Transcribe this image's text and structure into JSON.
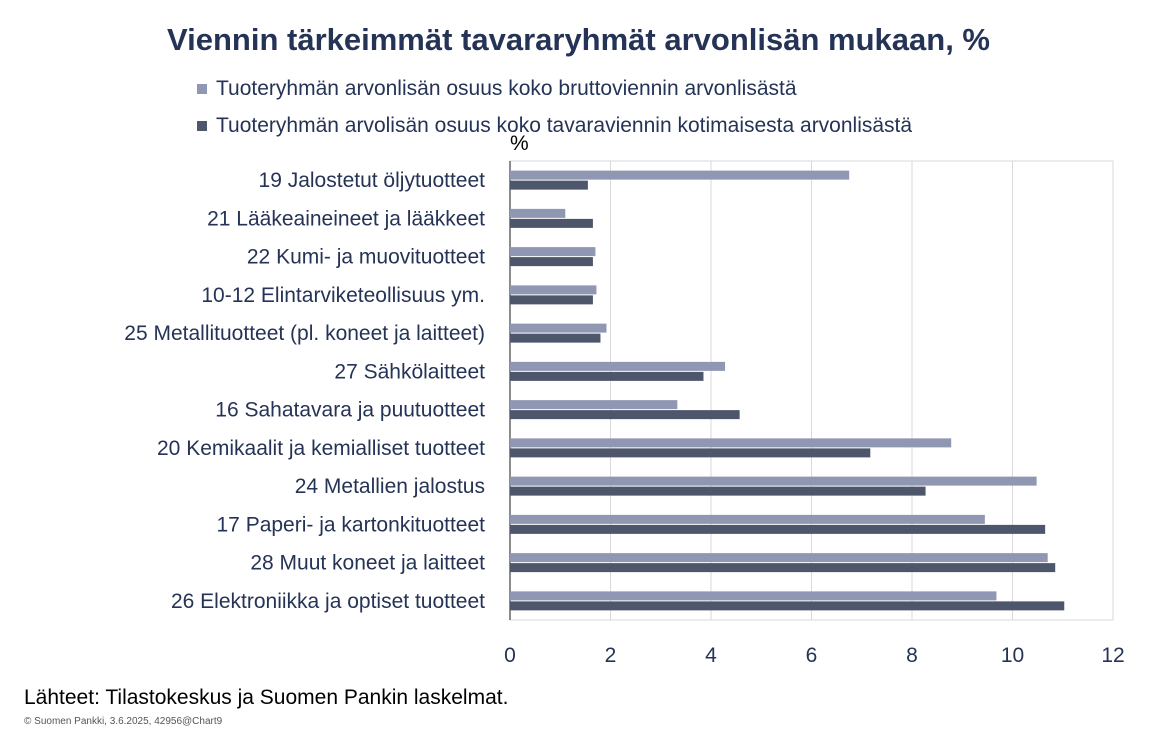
{
  "title": "Viennin tärkeimmät tavararyhmät arvonlisän mukaan, %",
  "legend": [
    {
      "label": "Tuoteryhmän arvonlisän osuus koko bruttoviennin arvonlisästä",
      "color": "#9097b3"
    },
    {
      "label": "Tuoteryhmän arvolisän osuus koko tavaraviennin kotimaisesta arvonlisästä",
      "color": "#4e566c"
    }
  ],
  "chart_data": {
    "type": "bar",
    "orientation": "horizontal",
    "unit_label": "%",
    "xlim": [
      0,
      12
    ],
    "xticks": [
      0,
      2,
      4,
      6,
      8,
      10,
      12
    ],
    "grid": true,
    "categories": [
      "19 Jalostetut öljytuotteet",
      "21 Lääkeaineineet ja lääkkeet",
      "22 Kumi- ja muovituotteet",
      "10-12 Elintarviketeollisuus ym.",
      "25 Metallituotteet (pl. koneet ja laitteet)",
      "27 Sähkölaitteet",
      "16 Sahatavara ja puutuotteet",
      "20 Kemikaalit ja kemialliset tuotteet",
      "24 Metallien jalostus",
      "17 Paperi- ja kartonkituotteet",
      "28 Muut koneet ja laitteet",
      "26 Elektroniikka ja optiset tuotteet"
    ],
    "series": [
      {
        "name": "Tuoteryhmän arvonlisän osuus koko bruttoviennin arvonlisästä",
        "color": "#9097b3",
        "values": [
          6.75,
          1.1,
          1.7,
          1.72,
          1.92,
          4.28,
          3.33,
          8.78,
          10.48,
          9.45,
          10.7,
          9.68
        ]
      },
      {
        "name": "Tuoteryhmän arvolisän osuus koko tavaraviennin kotimaisesta arvonlisästä",
        "color": "#4e566c",
        "values": [
          1.55,
          1.65,
          1.65,
          1.65,
          1.8,
          3.85,
          4.57,
          7.17,
          8.27,
          10.65,
          10.85,
          11.03
        ]
      }
    ]
  },
  "source": "Lähteet: Tilastokeskus ja Suomen Pankin laskelmat.",
  "copyright": "© Suomen Pankki, 3.6.2025, 42956@Chart9"
}
